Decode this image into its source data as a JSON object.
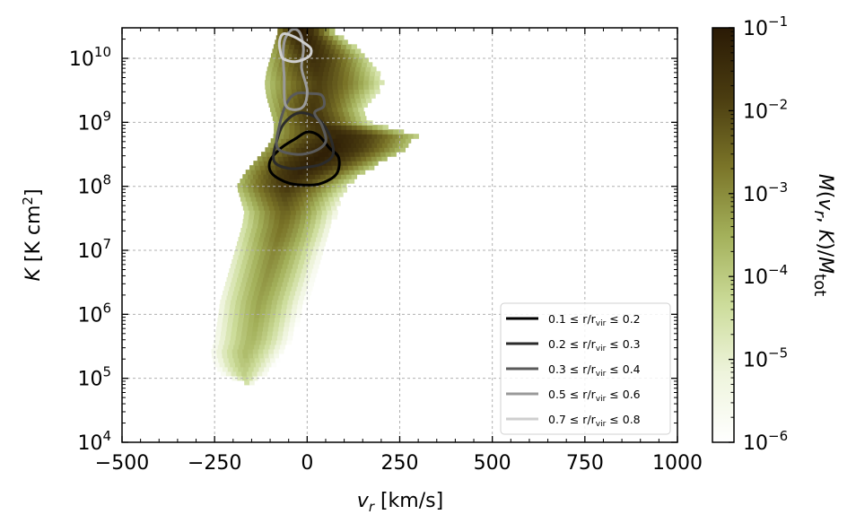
{
  "chart_data": {
    "type": "heatmap",
    "title": "",
    "xlabel": "v_r [km/s]",
    "ylabel": "K [K cm²]",
    "colorbar_label": "M(v_r, K)/M_tot",
    "x_scale": "linear",
    "y_scale": "log",
    "xlim": [
      -500,
      1000
    ],
    "ylim": [
      10000,
      30000000000
    ],
    "x_ticks": [
      -500,
      -250,
      0,
      250,
      500,
      750,
      1000
    ],
    "x_tick_labels": [
      "−500",
      "−250",
      "0",
      "250",
      "500",
      "750",
      "1000"
    ],
    "y_ticks": [
      {
        "value": 10000,
        "base": "10",
        "exp": "4"
      },
      {
        "value": 100000,
        "base": "10",
        "exp": "5"
      },
      {
        "value": 1000000,
        "base": "10",
        "exp": "6"
      },
      {
        "value": 10000000,
        "base": "10",
        "exp": "7"
      },
      {
        "value": 100000000,
        "base": "10",
        "exp": "8"
      },
      {
        "value": 1000000000,
        "base": "10",
        "exp": "9"
      },
      {
        "value": 10000000000,
        "base": "10",
        "exp": "10"
      }
    ],
    "colorbar": {
      "scale": "log",
      "range": [
        1e-06,
        0.1
      ],
      "ticks": [
        {
          "value": 1e-06,
          "base": "10",
          "exp": "−6"
        },
        {
          "value": 1e-05,
          "base": "10",
          "exp": "−5"
        },
        {
          "value": 0.0001,
          "base": "10",
          "exp": "−4"
        },
        {
          "value": 0.001,
          "base": "10",
          "exp": "−3"
        },
        {
          "value": 0.01,
          "base": "10",
          "exp": "−2"
        },
        {
          "value": 0.1,
          "base": "10",
          "exp": "−1"
        }
      ],
      "colors": [
        "#ffffff",
        "#eef4dc",
        "#ccdc9a",
        "#a3b05a",
        "#7a7428",
        "#4a3c10",
        "#2a1a05"
      ]
    },
    "grid": true,
    "legend_position": "lower-right",
    "heatmap_profile": {
      "logK_rows": [
        {
          "logK": 4.95,
          "vmin": -170,
          "vmax": -130,
          "level": -5.6
        },
        {
          "logK": 5.05,
          "vmin": -230,
          "vmax": -90,
          "level": -5.4
        },
        {
          "logK": 5.2,
          "vmin": -250,
          "vmax": -70,
          "level": -5.2
        },
        {
          "logK": 5.4,
          "vmin": -260,
          "vmax": -50,
          "level": -5.0
        },
        {
          "logK": 5.6,
          "vmin": -250,
          "vmax": -30,
          "level": -4.9
        },
        {
          "logK": 5.8,
          "vmin": -245,
          "vmax": -20,
          "level": -4.8
        },
        {
          "logK": 6.0,
          "vmin": -240,
          "vmax": -10,
          "level": -4.7
        },
        {
          "logK": 6.2,
          "vmin": -235,
          "vmax": 0,
          "level": -4.6
        },
        {
          "logK": 6.4,
          "vmin": -225,
          "vmax": 10,
          "level": -4.5
        },
        {
          "logK": 6.6,
          "vmin": -215,
          "vmax": 20,
          "level": -4.4
        },
        {
          "logK": 6.8,
          "vmin": -205,
          "vmax": 30,
          "level": -4.3
        },
        {
          "logK": 7.0,
          "vmin": -195,
          "vmax": 40,
          "level": -4.2
        },
        {
          "logK": 7.2,
          "vmin": -185,
          "vmax": 50,
          "level": -4.0
        },
        {
          "logK": 7.4,
          "vmin": -175,
          "vmax": 60,
          "level": -3.9
        },
        {
          "logK": 7.6,
          "vmin": -170,
          "vmax": 70,
          "level": -3.7
        },
        {
          "logK": 7.8,
          "vmin": -180,
          "vmax": 80,
          "level": -3.4
        },
        {
          "logK": 8.0,
          "vmin": -190,
          "vmax": 100,
          "level": -3.0
        },
        {
          "logK": 8.2,
          "vmin": -170,
          "vmax": 140,
          "level": -2.6
        },
        {
          "logK": 8.4,
          "vmin": -140,
          "vmax": 200,
          "level": -2.4
        },
        {
          "logK": 8.6,
          "vmin": -110,
          "vmax": 260,
          "level": -2.4
        },
        {
          "logK": 8.8,
          "vmin": -90,
          "vmax": 290,
          "level": -2.6
        },
        {
          "logK": 9.0,
          "vmin": -90,
          "vmax": 160,
          "level": -2.9
        },
        {
          "logK": 9.2,
          "vmin": -100,
          "vmax": 150,
          "level": -3.0
        },
        {
          "logK": 9.4,
          "vmin": -110,
          "vmax": 170,
          "level": -3.1
        },
        {
          "logK": 9.6,
          "vmin": -115,
          "vmax": 200,
          "level": -3.2
        },
        {
          "logK": 9.8,
          "vmin": -110,
          "vmax": 180,
          "level": -3.0
        },
        {
          "logK": 10.0,
          "vmin": -100,
          "vmax": 160,
          "level": -2.8
        },
        {
          "logK": 10.2,
          "vmin": -90,
          "vmax": 120,
          "level": -2.6
        },
        {
          "logK": 10.4,
          "vmin": -80,
          "vmax": 70,
          "level": -2.3
        }
      ]
    },
    "series": [
      {
        "name": "0.1 ≤ r/r_vir ≤ 0.2",
        "legend_main": "0.1 ≤ r/r",
        "legend_sub": "vir",
        "legend_tail": " ≤ 0.2",
        "color": "#000000",
        "contour": [
          [
            -100,
            8.4
          ],
          [
            -70,
            8.6
          ],
          [
            -30,
            8.75
          ],
          [
            0,
            8.85
          ],
          [
            30,
            8.8
          ],
          [
            60,
            8.6
          ],
          [
            85,
            8.45
          ],
          [
            80,
            8.2
          ],
          [
            40,
            8.05
          ],
          [
            0,
            8.02
          ],
          [
            -50,
            8.05
          ],
          [
            -95,
            8.2
          ]
        ]
      },
      {
        "name": "0.2 ≤ r/r_vir ≤ 0.3",
        "legend_main": "0.2 ≤ r/r",
        "legend_sub": "vir",
        "legend_tail": " ≤ 0.3",
        "color": "#2b2b2b",
        "contour": [
          [
            -90,
            8.4
          ],
          [
            -80,
            8.75
          ],
          [
            -60,
            9.0
          ],
          [
            -20,
            9.15
          ],
          [
            30,
            9.05
          ],
          [
            60,
            8.8
          ],
          [
            70,
            8.5
          ],
          [
            40,
            8.35
          ],
          [
            0,
            8.3
          ],
          [
            -50,
            8.28
          ]
        ]
      },
      {
        "name": "0.3 ≤ r/r_vir ≤ 0.4",
        "legend_main": "0.3 ≤ r/r",
        "legend_sub": "vir",
        "legend_tail": " ≤ 0.4",
        "color": "#5a5a5a",
        "contour": [
          [
            -80,
            8.6
          ],
          [
            -75,
            8.95
          ],
          [
            -55,
            9.3
          ],
          [
            -30,
            9.45
          ],
          [
            10,
            9.45
          ],
          [
            40,
            9.42
          ],
          [
            45,
            9.25
          ],
          [
            20,
            9.15
          ],
          [
            40,
            8.95
          ],
          [
            50,
            8.7
          ],
          [
            20,
            8.55
          ],
          [
            -30,
            8.5
          ]
        ]
      },
      {
        "name": "0.5 ≤ r/r_vir ≤ 0.6",
        "legend_main": "0.5 ≤ r/r",
        "legend_sub": "vir",
        "legend_tail": " ≤ 0.6",
        "color": "#9a9a9a",
        "contour": [
          [
            -60,
            9.3
          ],
          [
            -62,
            9.7
          ],
          [
            -65,
            10.05
          ],
          [
            -60,
            10.3
          ],
          [
            -40,
            10.45
          ],
          [
            -20,
            10.4
          ],
          [
            -10,
            10.15
          ],
          [
            -15,
            9.85
          ],
          [
            0,
            9.5
          ],
          [
            -10,
            9.25
          ],
          [
            -40,
            9.2
          ]
        ]
      },
      {
        "name": "0.7 ≤ r/r_vir ≤ 0.8",
        "legend_main": "0.7 ≤ r/r",
        "legend_sub": "vir",
        "legend_tail": " ≤ 0.8",
        "color": "#cfcfcf",
        "contour": [
          [
            -70,
            10.05
          ],
          [
            -75,
            10.25
          ],
          [
            -65,
            10.38
          ],
          [
            -40,
            10.35
          ],
          [
            -10,
            10.25
          ],
          [
            10,
            10.15
          ],
          [
            5,
            10.03
          ],
          [
            -30,
            9.95
          ],
          [
            -60,
            9.98
          ]
        ]
      }
    ]
  }
}
